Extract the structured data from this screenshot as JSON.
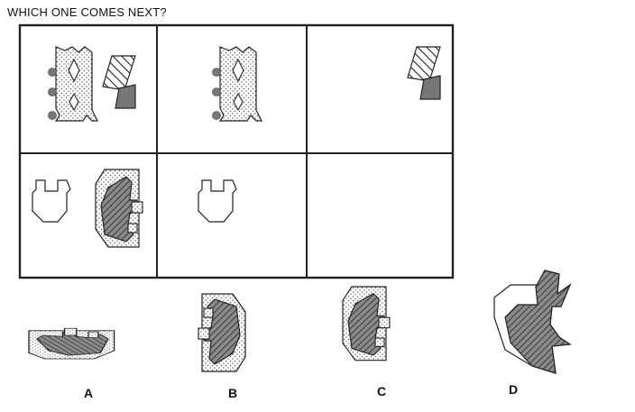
{
  "question": "WHICH ONE COMES NEXT?",
  "options": [
    {
      "label": "A"
    },
    {
      "label": "B"
    },
    {
      "label": "C"
    },
    {
      "label": "D"
    }
  ],
  "colors": {
    "line": "#222222",
    "dark_fill": "#777777",
    "dot": "#555555"
  }
}
